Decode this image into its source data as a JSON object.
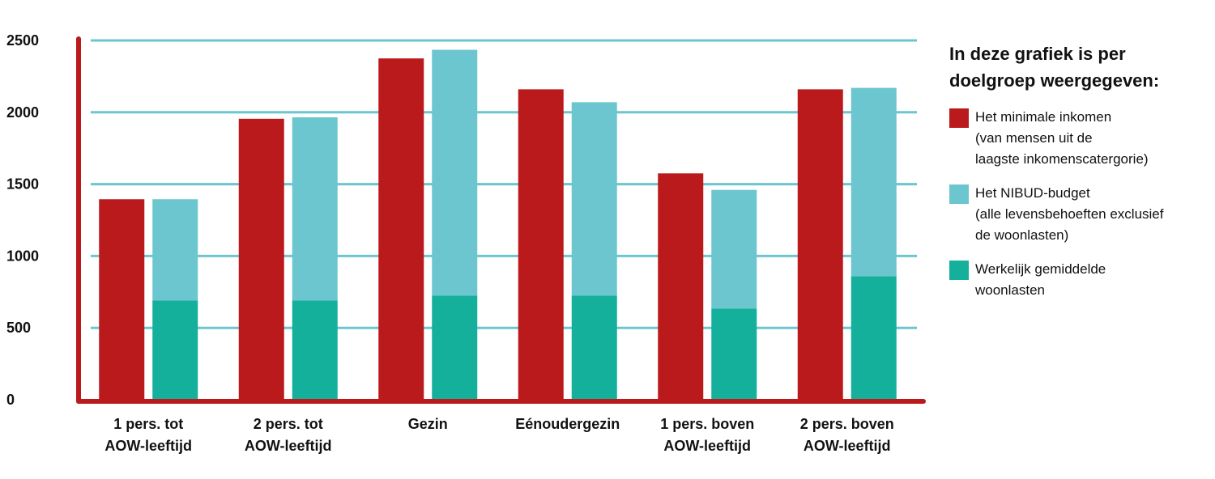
{
  "chart_data": {
    "type": "bar",
    "categories": [
      [
        "1 pers. tot",
        "AOW-leeftijd"
      ],
      [
        "2 pers. tot",
        "AOW-leeftijd"
      ],
      [
        "Gezin"
      ],
      [
        "Eénoudergezin"
      ],
      [
        "1 pers. boven",
        "AOW-leeftijd"
      ],
      [
        "2 pers. boven",
        "AOW-leeftijd"
      ]
    ],
    "series": [
      {
        "name": "Het minimale inkomen (van mensen uit de laagste inkomenscatergorie)",
        "stack": "a",
        "color": "#bb1a1c",
        "values": [
          1395,
          1955,
          2375,
          2160,
          1575,
          2160
        ]
      },
      {
        "name": "Werkelijk gemiddelde woonlasten",
        "stack": "b",
        "color": "#14b09b",
        "values": [
          690,
          690,
          725,
          725,
          635,
          860
        ]
      },
      {
        "name": "Het NIBUD-budget (alle levensbehoeften exclusief de woonlasten)",
        "stack": "b",
        "color": "#6cc6cf",
        "values": [
          705,
          1275,
          1710,
          1345,
          825,
          1310
        ]
      }
    ],
    "yticks": [
      0,
      500,
      1000,
      1500,
      2000,
      2500
    ],
    "ylim": [
      0,
      2500
    ],
    "grid": true,
    "legend_position": "right"
  },
  "legend": {
    "title_lines": [
      "In deze grafiek is per",
      "doelgroep weergegeven:"
    ],
    "items": [
      {
        "color": "#bb1a1c",
        "lines": [
          "Het minimale inkomen",
          "(van mensen uit de",
          "laagste inkomenscatergorie)"
        ]
      },
      {
        "color": "#6cc6cf",
        "lines": [
          "Het NIBUD-budget",
          "(alle levensbehoeften exclusief",
          "de woonlasten)"
        ]
      },
      {
        "color": "#14b09b",
        "lines": [
          "Werkelijk gemiddelde",
          "woonlasten"
        ]
      }
    ]
  },
  "colors": {
    "axis": "#bb1a1c",
    "grid": "#6cc6cf"
  }
}
